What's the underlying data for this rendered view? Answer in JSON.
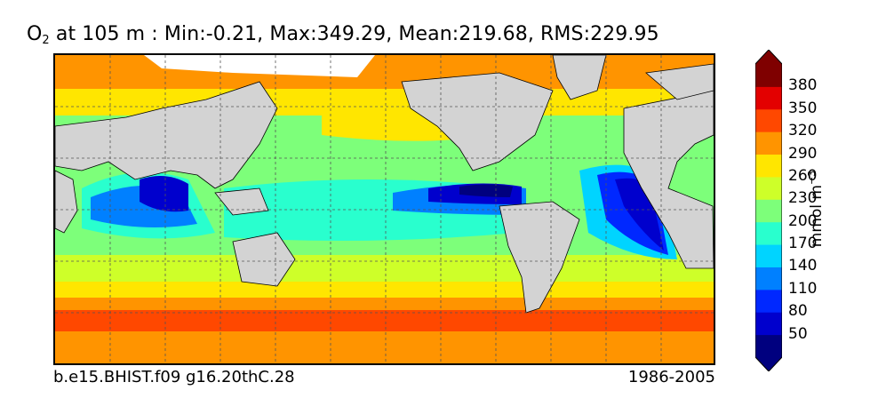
{
  "title": {
    "symbol": "O",
    "subscript": "2",
    "text": " at 105 m : Min:-0.21, Max:349.29, Mean:219.68, RMS:229.95"
  },
  "footer": {
    "case_name": "b.e15.BHIST.f09 g16.20thC.28",
    "period": "1986-2005"
  },
  "colorbar": {
    "label_text": "mmol m",
    "label_exponent": "−3",
    "ticks": [
      "380",
      "350",
      "320",
      "290",
      "260",
      "230",
      "200",
      "170",
      "140",
      "110",
      "80",
      "50"
    ],
    "colors": [
      "#00007f",
      "#0000cd",
      "#0028ff",
      "#0080ff",
      "#00d4ff",
      "#29ffce",
      "#7dff7a",
      "#ceff29",
      "#ffe600",
      "#ff9400",
      "#ff4800",
      "#e30000",
      "#7f0000"
    ],
    "land_color": "#d3d3d3"
  }
}
